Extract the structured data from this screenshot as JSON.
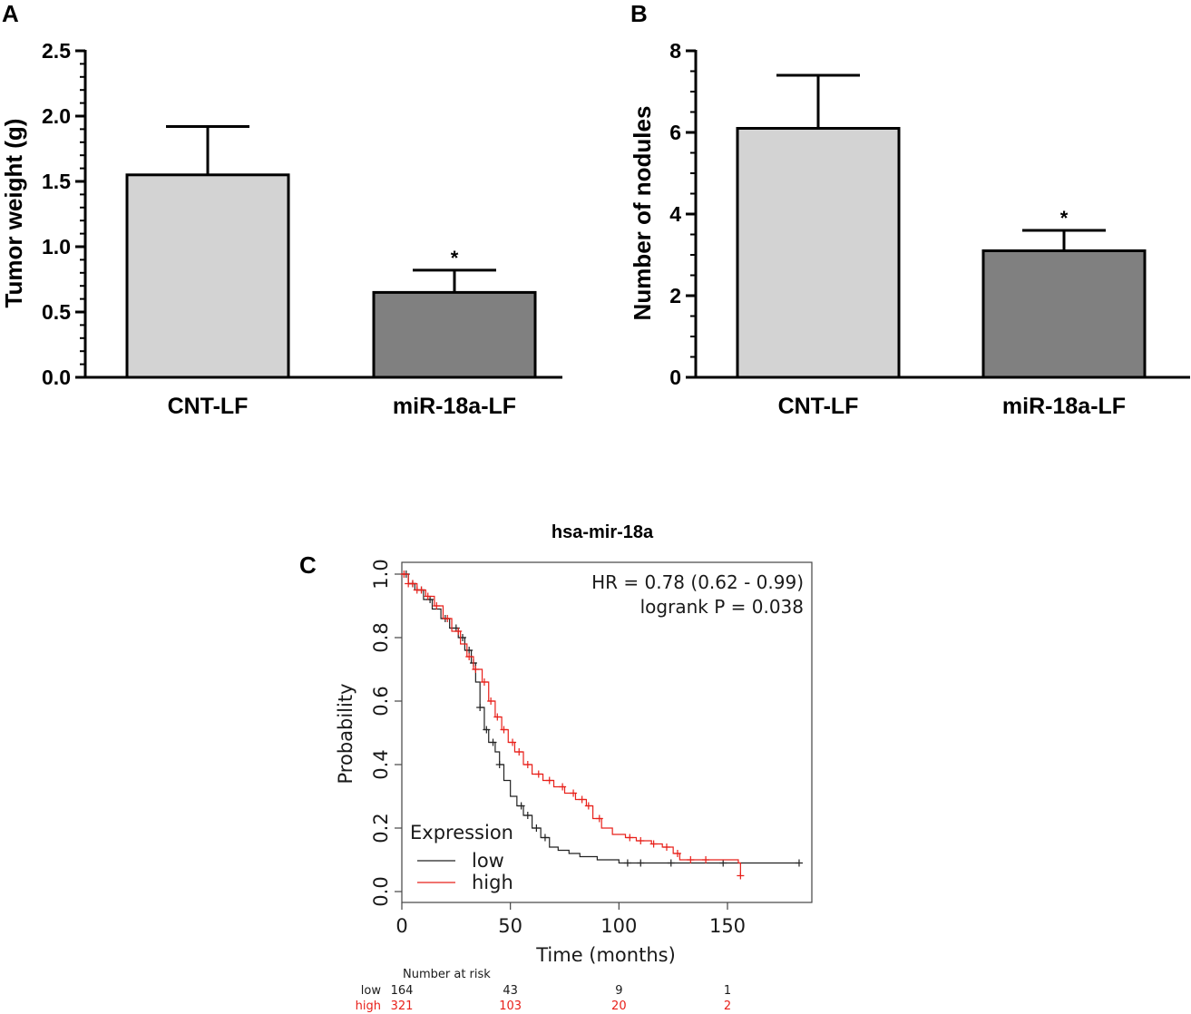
{
  "panel_labels": {
    "a": "A",
    "b": "B",
    "c": "C"
  },
  "colors": {
    "bar_control": "#d3d3d3",
    "bar_treatment": "#808080",
    "km_low": "#222222",
    "km_high": "#e8201a"
  },
  "chart_data": [
    {
      "type": "bar",
      "panel": "A",
      "categories": [
        "CNT-LF",
        "miR-18a-LF"
      ],
      "values": [
        1.55,
        0.65
      ],
      "errors": [
        0.37,
        0.17
      ],
      "significance": [
        "",
        "*"
      ],
      "title": "",
      "xlabel": "",
      "ylabel": "Tumor weight (g)",
      "ylim": [
        0,
        2.5
      ],
      "yticks": [
        0,
        0.5,
        1,
        1.5,
        2,
        2.5
      ],
      "ytick_labels": [
        "0.0",
        "0.5",
        "1.0",
        "1.5",
        "2.0",
        "2.5"
      ]
    },
    {
      "type": "bar",
      "panel": "B",
      "categories": [
        "CNT-LF",
        "miR-18a-LF"
      ],
      "values": [
        6.1,
        3.1
      ],
      "errors": [
        1.3,
        0.5
      ],
      "significance": [
        "",
        "*"
      ],
      "title": "",
      "xlabel": "",
      "ylabel": "Number of nodules",
      "ylim": [
        0,
        8
      ],
      "yticks": [
        0,
        2,
        4,
        6,
        8
      ],
      "ytick_labels": [
        "0",
        "2",
        "4",
        "6",
        "8"
      ]
    },
    {
      "type": "line",
      "panel": "C",
      "title": "hsa-mir-18a",
      "xlabel": "Time (months)",
      "ylabel": "Probability",
      "xlim": [
        0,
        185
      ],
      "ylim": [
        0,
        1
      ],
      "xticks": [
        0,
        50,
        100,
        150
      ],
      "yticks": [
        0,
        0.2,
        0.4,
        0.6,
        0.8,
        1.0
      ],
      "ytick_labels": [
        "0.0",
        "0.2",
        "0.4",
        "0.6",
        "0.8",
        "1.0"
      ],
      "annotations": [
        "HR = 0.78 (0.62 - 0.99)",
        "logrank P = 0.038"
      ],
      "legend": {
        "title": "Expression",
        "position": "bottom-left"
      },
      "series": [
        {
          "name": "low",
          "x": [
            0,
            3,
            6,
            10,
            14,
            18,
            22,
            26,
            29,
            32,
            34,
            36,
            38,
            40,
            43,
            45,
            47,
            50,
            53,
            56,
            60,
            64,
            68,
            72,
            77,
            82,
            90,
            100,
            110,
            130,
            150,
            183
          ],
          "y": [
            1.0,
            0.97,
            0.95,
            0.92,
            0.89,
            0.86,
            0.83,
            0.8,
            0.76,
            0.72,
            0.66,
            0.58,
            0.51,
            0.47,
            0.44,
            0.4,
            0.35,
            0.3,
            0.27,
            0.24,
            0.2,
            0.17,
            0.14,
            0.13,
            0.12,
            0.11,
            0.1,
            0.09,
            0.09,
            0.09,
            0.09,
            0.09
          ],
          "censor_x": [
            2,
            5,
            9,
            13,
            20,
            25,
            28,
            31,
            33,
            36,
            39,
            42,
            45,
            55,
            58,
            62,
            66,
            104,
            110,
            124,
            148,
            183
          ]
        },
        {
          "name": "high",
          "x": [
            0,
            3,
            7,
            11,
            15,
            19,
            23,
            27,
            30,
            33,
            37,
            40,
            43,
            46,
            49,
            52,
            56,
            60,
            65,
            70,
            75,
            80,
            85,
            88,
            92,
            97,
            103,
            108,
            115,
            120,
            125,
            128,
            135,
            145,
            155,
            156
          ],
          "y": [
            1.0,
            0.97,
            0.95,
            0.93,
            0.9,
            0.86,
            0.82,
            0.78,
            0.74,
            0.7,
            0.66,
            0.6,
            0.55,
            0.51,
            0.47,
            0.44,
            0.4,
            0.37,
            0.35,
            0.33,
            0.31,
            0.29,
            0.27,
            0.23,
            0.2,
            0.18,
            0.17,
            0.16,
            0.15,
            0.14,
            0.12,
            0.1,
            0.1,
            0.1,
            0.09,
            0.05
          ],
          "censor_x": [
            1,
            3,
            5,
            7,
            9,
            12,
            16,
            21,
            26,
            31,
            34,
            38,
            41,
            44,
            47,
            51,
            54,
            58,
            63,
            68,
            74,
            79,
            83,
            86,
            91,
            105,
            110,
            116,
            122,
            127,
            133,
            140,
            156
          ]
        }
      ],
      "risk_table": {
        "header": "Number at risk",
        "times": [
          0,
          50,
          100,
          150
        ],
        "rows": [
          {
            "label": "low",
            "counts": [
              "164",
              "43",
              "9",
              "1"
            ]
          },
          {
            "label": "high",
            "counts": [
              "321",
              "103",
              "20",
              "2"
            ]
          }
        ]
      }
    }
  ]
}
